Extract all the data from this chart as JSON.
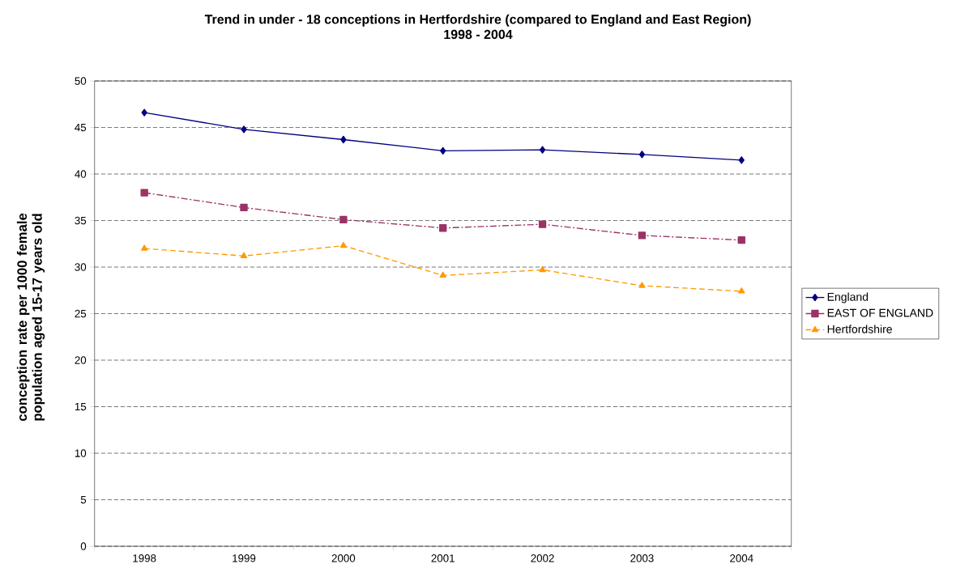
{
  "chart_data": {
    "type": "line",
    "title": "Trend in under - 18 conceptions in Hertfordshire (compared to England and East Region)",
    "subtitle": "1998 - 2004",
    "ylabel": "conception rate per 1000 female population aged 15-17 years old",
    "categories": [
      "1998",
      "1999",
      "2000",
      "2001",
      "2002",
      "2003",
      "2004"
    ],
    "series": [
      {
        "name": "England",
        "color": "#000080",
        "marker": "diamond",
        "line_style": "solid",
        "values": [
          46.6,
          44.8,
          43.7,
          42.5,
          42.6,
          42.1,
          41.5
        ]
      },
      {
        "name": "EAST OF ENGLAND",
        "color": "#993366",
        "marker": "square",
        "line_style": "dashdot",
        "values": [
          38.0,
          36.4,
          35.1,
          34.2,
          34.6,
          33.4,
          32.9
        ]
      },
      {
        "name": "Hertfordshire",
        "color": "#ff9900",
        "marker": "triangle",
        "line_style": "dashed",
        "values": [
          32.0,
          31.2,
          32.3,
          29.1,
          29.7,
          28.0,
          27.4
        ]
      }
    ],
    "ylim": [
      0,
      50
    ],
    "yticks": [
      0,
      5,
      10,
      15,
      20,
      25,
      30,
      35,
      40,
      45,
      50
    ],
    "grid": "y",
    "legend": "right"
  }
}
